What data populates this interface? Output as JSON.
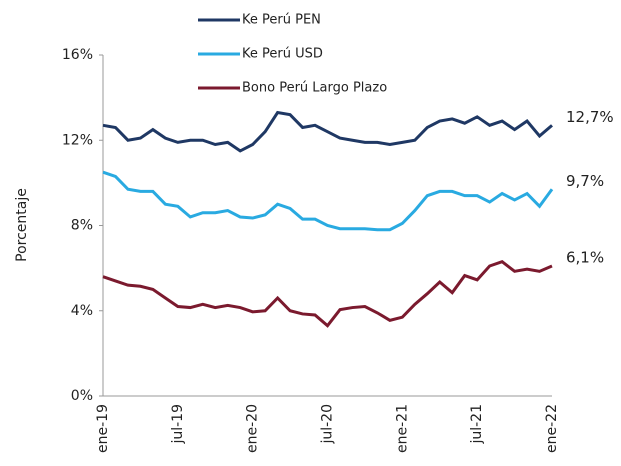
{
  "chart_data": {
    "type": "line",
    "y_label": "Porcentaje",
    "categories": [
      "ene-19",
      null,
      null,
      null,
      null,
      null,
      "jul-19",
      null,
      null,
      null,
      null,
      null,
      "ene-20",
      null,
      null,
      null,
      null,
      null,
      "jul-20",
      null,
      null,
      null,
      null,
      null,
      "ene-21",
      null,
      null,
      null,
      null,
      null,
      "jul-21",
      null,
      null,
      null,
      null,
      null,
      "ene-22"
    ],
    "series": [
      {
        "name": "Ke Perú PEN",
        "color": "#1f3864",
        "end_label": "12,7%",
        "values": [
          12.7,
          12.6,
          12.0,
          12.1,
          12.5,
          12.1,
          11.9,
          12.0,
          12.0,
          11.8,
          11.9,
          11.5,
          11.8,
          12.4,
          13.3,
          13.2,
          12.6,
          12.7,
          12.4,
          12.1,
          12.0,
          11.9,
          11.9,
          11.8,
          11.9,
          12.0,
          12.6,
          12.9,
          13.0,
          12.8,
          13.1,
          12.7,
          12.9,
          12.5,
          12.9,
          12.2,
          12.7
        ]
      },
      {
        "name": "Ke Perú USD",
        "color": "#29aae1",
        "end_label": "9,7%",
        "values": [
          10.5,
          10.3,
          9.7,
          9.6,
          9.6,
          9.0,
          8.9,
          8.4,
          8.6,
          8.6,
          8.7,
          8.4,
          8.35,
          8.5,
          9.0,
          8.8,
          8.3,
          8.3,
          8.0,
          7.85,
          7.85,
          7.85,
          7.8,
          7.8,
          8.1,
          8.7,
          9.4,
          9.6,
          9.6,
          9.4,
          9.4,
          9.1,
          9.5,
          9.2,
          9.5,
          8.9,
          9.7
        ]
      },
      {
        "name": "Bono Perú Largo Plazo",
        "color": "#7b1a2e",
        "end_label": "6,1%",
        "values": [
          5.6,
          5.4,
          5.2,
          5.15,
          5.0,
          4.6,
          4.2,
          4.15,
          4.3,
          4.15,
          4.25,
          4.15,
          3.95,
          4.0,
          4.6,
          4.0,
          3.85,
          3.8,
          3.3,
          4.05,
          4.15,
          4.2,
          3.9,
          3.55,
          3.7,
          4.3,
          4.8,
          5.35,
          4.85,
          5.65,
          5.45,
          6.1,
          6.3,
          5.85,
          5.95,
          5.85,
          6.1
        ]
      }
    ],
    "ylim": [
      0,
      16
    ],
    "yticks": [
      {
        "value": 0,
        "label": "0%"
      },
      {
        "value": 4,
        "label": "4%"
      },
      {
        "value": 8,
        "label": "8%"
      },
      {
        "value": 12,
        "label": "12%"
      },
      {
        "value": 16,
        "label": "16%"
      }
    ],
    "grid": false,
    "legend": "top"
  }
}
